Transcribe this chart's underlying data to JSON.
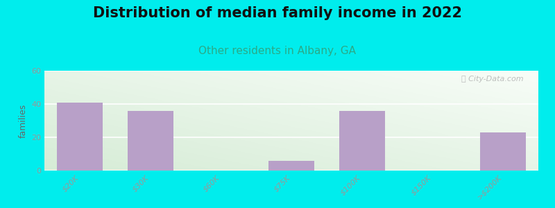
{
  "title": "Distribution of median family income in 2022",
  "subtitle": "Other residents in Albany, GA",
  "categories": [
    "$20K",
    "$30K",
    "$60K",
    "$75K",
    "$100K",
    "$150K",
    ">$200K"
  ],
  "values": [
    41,
    36,
    0,
    6,
    36,
    0,
    23
  ],
  "bar_color": "#b8a0c8",
  "ylabel": "families",
  "ylim": [
    0,
    60
  ],
  "yticks": [
    0,
    20,
    40,
    60
  ],
  "background_color": "#00eded",
  "grad_top_left": "#d6ecd6",
  "grad_bottom_right": "#f8fdf8",
  "title_fontsize": 15,
  "subtitle_fontsize": 11,
  "subtitle_color": "#2aaa88",
  "watermark": "ⓘ City-Data.com",
  "tick_label_color": "#999999",
  "tick_label_fontsize": 8
}
